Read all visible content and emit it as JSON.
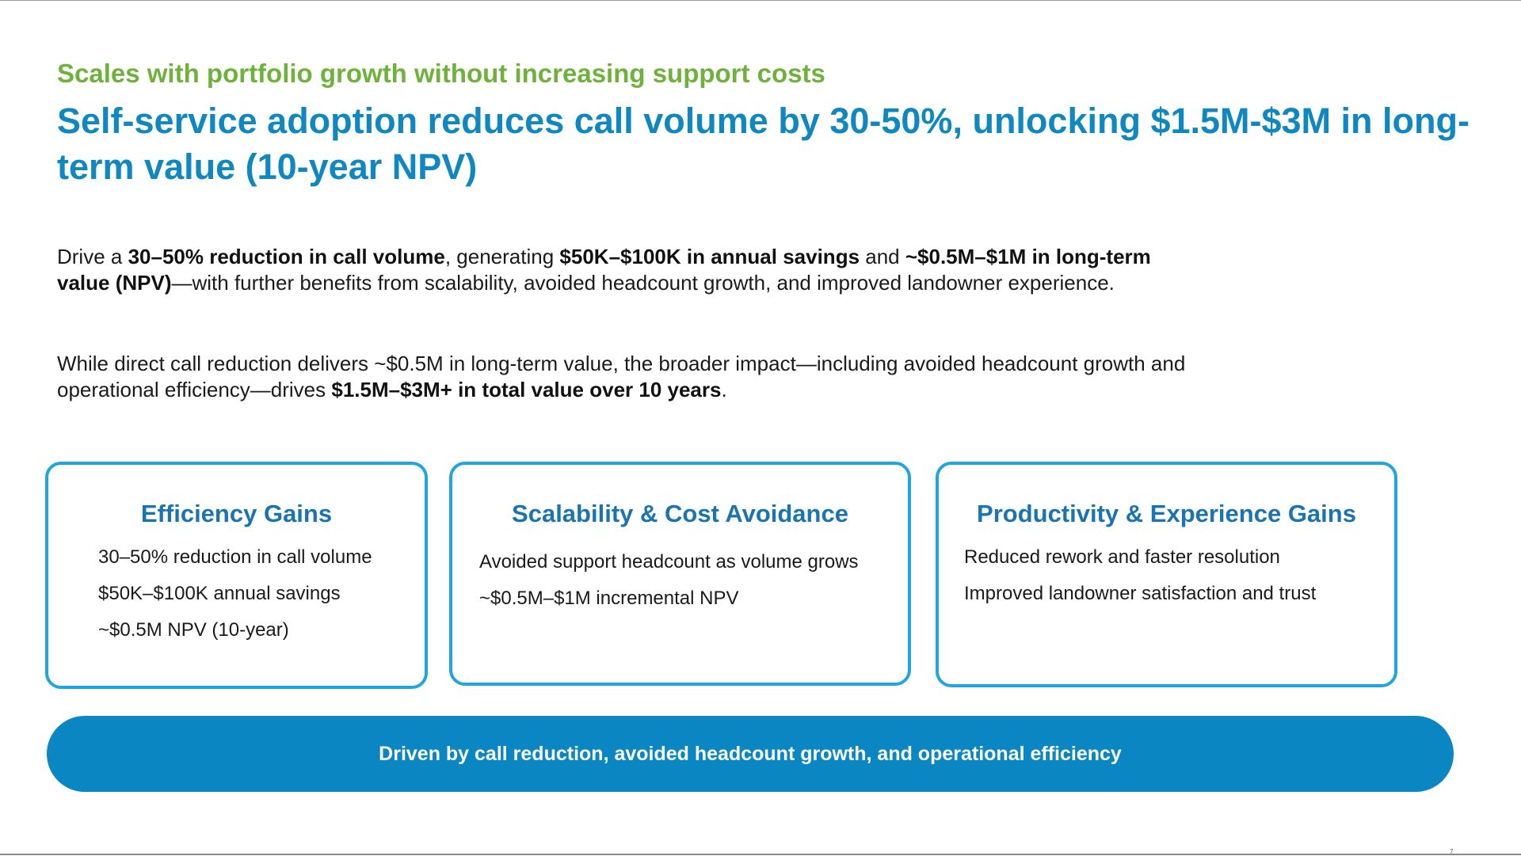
{
  "slide": {
    "subtitle": "Scales with portfolio growth without increasing support costs",
    "title": "Self-service adoption reduces call volume by 30-50%, unlocking $1.5M-$3M in long-term value (10-year NPV)",
    "page_number": "7"
  },
  "paragraph_1": {
    "t1": "Drive a ",
    "b1": "30–50% reduction in call volume",
    "t2": ", generating ",
    "b2": "$50K–$100K in annual savings",
    "t3": " and ",
    "b3": "~$0.5M–$1M in long-term value (NPV)",
    "t4": "—with further benefits from scalability, avoided headcount growth, and improved landowner experience."
  },
  "paragraph_2": {
    "t1": "While direct call reduction delivers ~$0.5M in long-term value, the broader impact—including avoided headcount growth and operational efficiency—drives ",
    "b1": "$1.5M–$3M+ in total value over 10 years",
    "t2": "."
  },
  "cards": [
    {
      "title": "Efficiency Gains",
      "items": [
        "30–50% reduction in call volume",
        "$50K–$100K annual savings",
        "~$0.5M NPV (10-year)"
      ]
    },
    {
      "title": "Scalability & Cost Avoidance",
      "items": [
        "Avoided support headcount as volume grows",
        "~$0.5M–$1M incremental NPV"
      ]
    },
    {
      "title": "Productivity & Experience Gains",
      "items": [
        "Reduced rework and faster resolution",
        "Improved landowner satisfaction and trust"
      ]
    }
  ],
  "banner": {
    "text": "Driven by call reduction, avoided headcount growth, and operational efficiency"
  },
  "colors": {
    "subtitle_green": "#6fb23b",
    "title_blue": "#0f88c1",
    "card_border": "#1fa6e0",
    "card_title": "#1b74b2",
    "banner_blue": "#0a86c2"
  }
}
